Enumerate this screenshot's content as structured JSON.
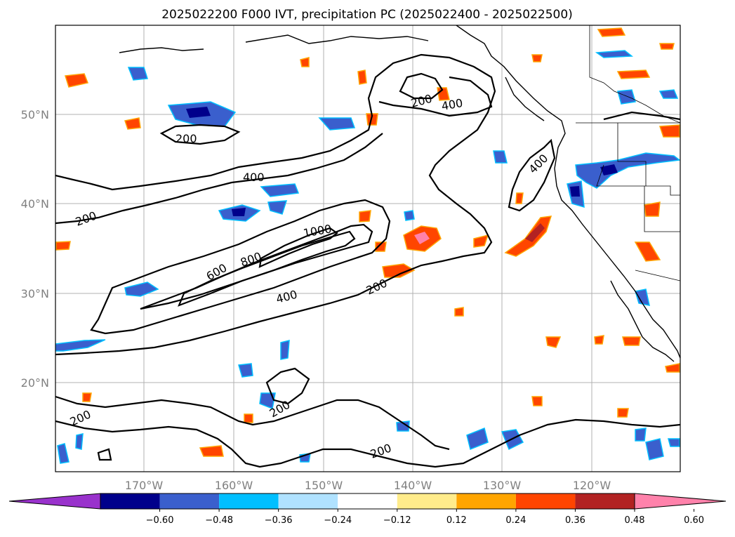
{
  "title": "2025022200 F000 IVT, precipitation PC (2025022400 - 2025022500)",
  "lat_labels": [
    "50°N",
    "40°N",
    "30°N",
    "20°N"
  ],
  "lon_labels": [
    "170°W",
    "160°W",
    "150°W",
    "140°W",
    "130°W",
    "120°W"
  ],
  "contour_labels": [
    "200",
    "200",
    "200",
    "200",
    "200",
    "200",
    "200",
    "400",
    "400",
    "400",
    "400",
    "600",
    "800",
    "1000"
  ],
  "colorbar": {
    "colors": [
      "#9932cc",
      "#00008b",
      "#3a5fcd",
      "#00bfff",
      "#b0e2ff",
      "#ffffff",
      "#ffec8b",
      "#ffa500",
      "#ff4500",
      "#b22222",
      "#ff82ab"
    ],
    "tick_labels": [
      "−0.60",
      "−0.48",
      "−0.36",
      "−0.24",
      "−0.12",
      "0.12",
      "0.24",
      "0.36",
      "0.48",
      "0.60"
    ]
  },
  "colors": {
    "positive_fill": "#ff4500",
    "negative_fill": "#3a5fcd",
    "gridline": "#b0b0b0",
    "axis_text": "#808080"
  }
}
